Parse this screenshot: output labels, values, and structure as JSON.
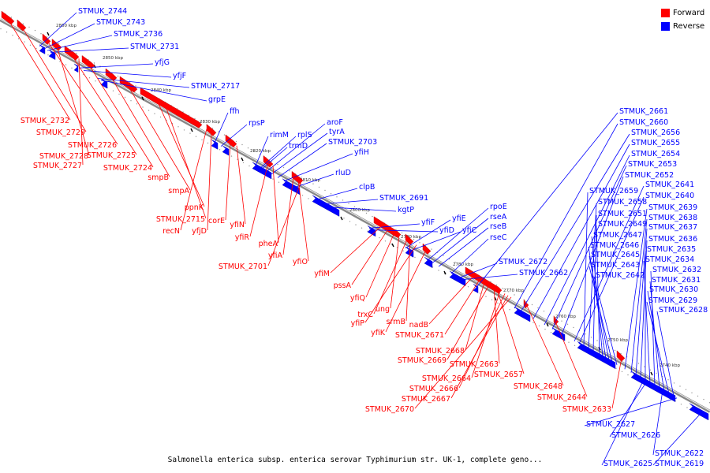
{
  "legend": {
    "forward_label": "Forward",
    "reverse_label": "Reverse",
    "forward_color": "#ff0000",
    "reverse_color": "#0000ff"
  },
  "caption": "Salmonella enterica subsp. enterica serovar Typhimurium str. UK-1, complete geno...",
  "scale_ticks": [
    "2860 kbp",
    "2850 kbp",
    "2840 kbp",
    "2830 kbp",
    "2820 kbp",
    "2810 kbp",
    "2800 kbp",
    "2790 kbp",
    "2780 kbp",
    "2770 kbp",
    "2760 kbp",
    "2750 kbp",
    "2740 kbp"
  ],
  "reverse_genes": [
    "STMUK_2744",
    "STMUK_2743",
    "STMUK_2736",
    "STMUK_2731",
    "yfjG",
    "yfjF",
    "STMUK_2717",
    "grpE",
    "ffh",
    "rpsP",
    "rimM",
    "rplS",
    "trmD",
    "aroF",
    "tyrA",
    "STMUK_2703",
    "yfiH",
    "rluD",
    "clpB",
    "STMUK_2691",
    "kgtP",
    "yfiF",
    "yfiD",
    "yfiE",
    "yfiC",
    "rpoE",
    "rseA",
    "rseB",
    "rseC",
    "STMUK_2672",
    "STMUK_2662",
    "STMUK_2661",
    "STMUK_2660",
    "STMUK_2656",
    "STMUK_2655",
    "STMUK_2654",
    "STMUK_2653",
    "STMUK_2652",
    "STMUK_2641",
    "STMUK_2640",
    "STMUK_2659",
    "STMUK_2658",
    "STMUK_2651",
    "STMUK_2649",
    "STMUK_2647",
    "STMUK_2646",
    "STMUK_2645",
    "STMUK_2643",
    "STMUK_2642",
    "STMUK_2639",
    "STMUK_2638",
    "STMUK_2637",
    "STMUK_2636",
    "STMUK_2635",
    "STMUK_2634",
    "STMUK_2632",
    "STMUK_2631",
    "STMUK_2630",
    "STMUK_2629",
    "STMUK_2628",
    "STMUK_2627",
    "STMUK_2626",
    "STMUK_2622",
    "STMUK_2625",
    "STMUK_2619"
  ],
  "forward_genes": [
    "STMUK_2732",
    "STMUK_2729",
    "STMUK_2726",
    "STMUK_2728",
    "STMUK_2725",
    "STMUK_2727",
    "STMUK_2724",
    "smpB",
    "smpA",
    "ppnK",
    "STMUK_2715",
    "recN",
    "yfjD",
    "corE",
    "yfiN",
    "yfiR",
    "pheA",
    "yfiA",
    "yfiO",
    "STMUK_2701",
    "yfiM",
    "pssA",
    "yfiQ",
    "ung",
    "trxC",
    "srmB",
    "yfiP",
    "yfiK",
    "nadB",
    "STMUK_2671",
    "STMUK_2668",
    "STMUK_2669",
    "STMUK_2663",
    "STMUK_2657",
    "STMUK_2664",
    "STMUK_2666",
    "STMUK_2667",
    "STMUK_2670",
    "STMUK_2648",
    "STMUK_2644",
    "STMUK_2633"
  ]
}
